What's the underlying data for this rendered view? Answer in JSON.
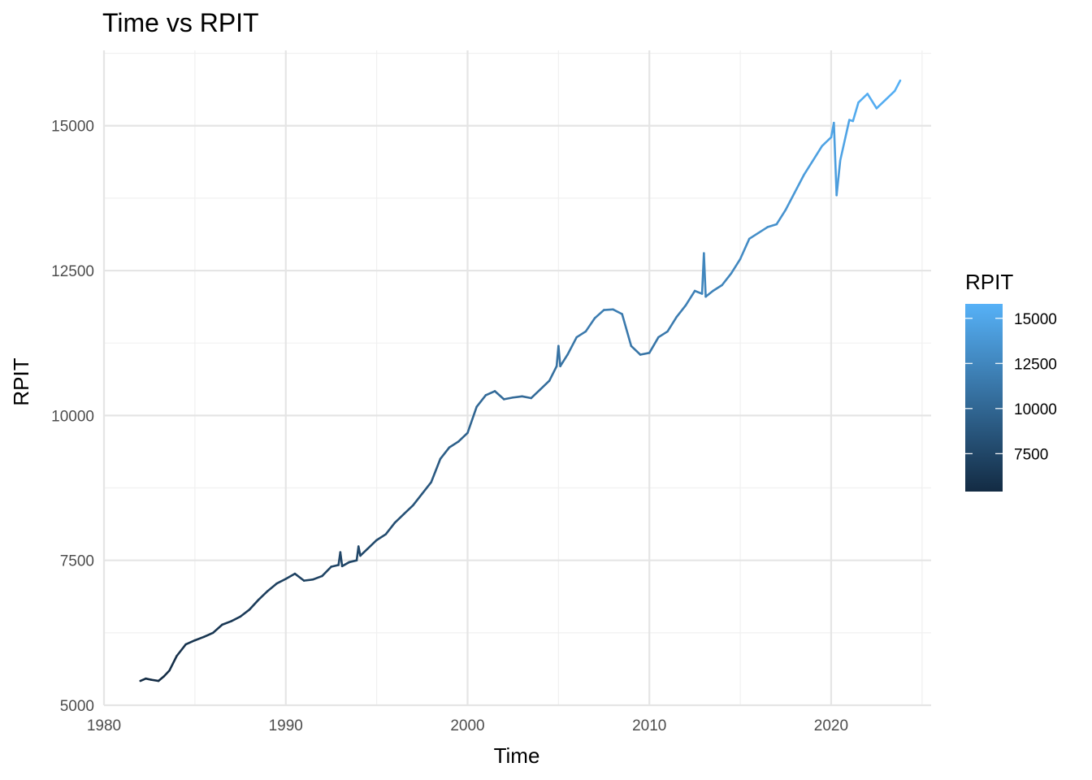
{
  "chart_data": {
    "type": "line",
    "title": "Time vs RPIT",
    "xlabel": "Time",
    "ylabel": "RPIT",
    "xlim": [
      1980,
      2025.5
    ],
    "ylim": [
      5000,
      16300
    ],
    "x_ticks": [
      1980,
      1990,
      2000,
      2010,
      2020
    ],
    "x_tick_labels": [
      "1980",
      "1990",
      "2000",
      "2010",
      "2020"
    ],
    "y_ticks": [
      5000,
      7500,
      10000,
      12500,
      15000
    ],
    "y_tick_labels": [
      "5000",
      "7500",
      "10000",
      "12500",
      "15000"
    ],
    "grid": true,
    "color_scale": {
      "title": "RPIT",
      "low_color": "#132B43",
      "high_color": "#56B1F7",
      "range": [
        5400,
        15800
      ],
      "breaks": [
        7500,
        10000,
        12500,
        15000
      ],
      "break_labels": [
        "7500",
        "10000",
        "12500",
        "15000"
      ],
      "placement": "right"
    },
    "series": [
      {
        "x": [
          1982.0,
          1982.3,
          1982.6,
          1983.0,
          1983.3,
          1983.6,
          1984.0,
          1984.5,
          1985.0,
          1985.5,
          1986.0,
          1986.5,
          1987.0,
          1987.5,
          1988.0,
          1988.5,
          1989.0,
          1989.5,
          1990.0,
          1990.5,
          1991.0,
          1991.5,
          1992.0,
          1992.5,
          1992.9,
          1993.0,
          1993.1,
          1993.5,
          1993.9,
          1994.0,
          1994.1,
          1994.5,
          1995.0,
          1995.5,
          1996.0,
          1996.5,
          1997.0,
          1997.5,
          1998.0,
          1998.5,
          1999.0,
          1999.5,
          2000.0,
          2000.5,
          2001.0,
          2001.5,
          2002.0,
          2002.5,
          2003.0,
          2003.5,
          2004.0,
          2004.5,
          2004.9,
          2005.0,
          2005.1,
          2005.5,
          2006.0,
          2006.5,
          2007.0,
          2007.5,
          2008.0,
          2008.5,
          2009.0,
          2009.5,
          2010.0,
          2010.5,
          2011.0,
          2011.5,
          2012.0,
          2012.5,
          2012.9,
          2013.0,
          2013.1,
          2013.5,
          2014.0,
          2014.5,
          2015.0,
          2015.5,
          2016.0,
          2016.5,
          2017.0,
          2017.5,
          2018.0,
          2018.5,
          2019.0,
          2019.5,
          2020.0,
          2020.15,
          2020.3,
          2020.5,
          2021.0,
          2021.2,
          2021.5,
          2022.0,
          2022.5,
          2023.0,
          2023.5,
          2023.8
        ],
        "y": [
          5420,
          5460,
          5440,
          5420,
          5500,
          5600,
          5850,
          6050,
          6120,
          6180,
          6250,
          6390,
          6450,
          6530,
          6650,
          6820,
          6970,
          7100,
          7180,
          7270,
          7150,
          7170,
          7230,
          7390,
          7420,
          7640,
          7400,
          7470,
          7500,
          7740,
          7580,
          7700,
          7850,
          7950,
          8150,
          8300,
          8450,
          8650,
          8850,
          9250,
          9450,
          9550,
          9700,
          10150,
          10350,
          10420,
          10280,
          10310,
          10330,
          10300,
          10450,
          10600,
          10850,
          11200,
          10850,
          11050,
          11350,
          11450,
          11680,
          11820,
          11830,
          11750,
          11200,
          11050,
          11080,
          11350,
          11450,
          11700,
          11900,
          12150,
          12100,
          12800,
          12050,
          12150,
          12250,
          12450,
          12700,
          13050,
          13150,
          13250,
          13300,
          13550,
          13850,
          14150,
          14400,
          14650,
          14800,
          15050,
          13800,
          14400,
          15100,
          15080,
          15400,
          15550,
          15300,
          15450,
          15600,
          15780
        ]
      }
    ]
  }
}
